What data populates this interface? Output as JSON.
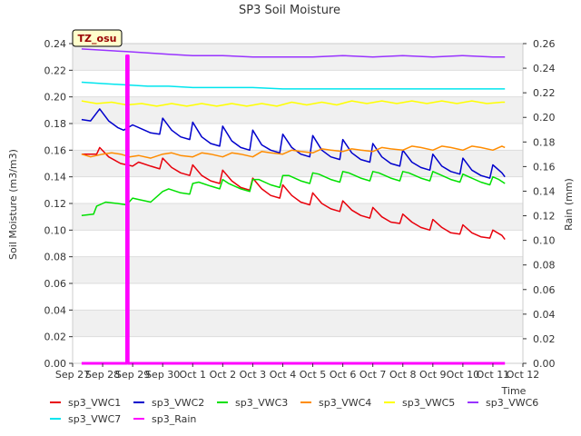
{
  "chart_data": {
    "type": "line",
    "title": "SP3 Soil Moisture",
    "xlabel": "Time",
    "ylabel": "Soil Moisture (m3/m3)",
    "y2label": "Rain (mm)",
    "badge": "TZ_osu",
    "xlim": [
      0,
      15
    ],
    "ylim": [
      0,
      0.24
    ],
    "y2lim": [
      0,
      0.26
    ],
    "x_ticks": [
      {
        "v": 0,
        "label": "Sep 27"
      },
      {
        "v": 1,
        "label": "Sep 28"
      },
      {
        "v": 2,
        "label": "Sep 29"
      },
      {
        "v": 3,
        "label": "Sep 30"
      },
      {
        "v": 4,
        "label": "Oct 1"
      },
      {
        "v": 5,
        "label": "Oct 2"
      },
      {
        "v": 6,
        "label": "Oct 3"
      },
      {
        "v": 7,
        "label": "Oct 4"
      },
      {
        "v": 8,
        "label": "Oct 5"
      },
      {
        "v": 9,
        "label": "Oct 6"
      },
      {
        "v": 10,
        "label": "Oct 7"
      },
      {
        "v": 11,
        "label": "Oct 8"
      },
      {
        "v": 12,
        "label": "Oct 9"
      },
      {
        "v": 13,
        "label": "Oct 10"
      },
      {
        "v": 14,
        "label": "Oct 11"
      },
      {
        "v": 15,
        "label": "Oct 12"
      }
    ],
    "y_ticks": [
      "0.00",
      "0.02",
      "0.04",
      "0.06",
      "0.08",
      "0.10",
      "0.12",
      "0.14",
      "0.16",
      "0.18",
      "0.20",
      "0.22",
      "0.24"
    ],
    "y2_ticks": [
      "0.00",
      "0.02",
      "0.04",
      "0.06",
      "0.08",
      "0.10",
      "0.12",
      "0.14",
      "0.16",
      "0.18",
      "0.20",
      "0.22",
      "0.24",
      "0.26"
    ],
    "grid": true,
    "legend_position": "bottom",
    "series": [
      {
        "name": "sp3_VWC1",
        "color": "#e8000b",
        "axis": "left",
        "x": [
          0.3,
          0.8,
          0.9,
          1.2,
          1.6,
          2.0,
          2.2,
          2.6,
          2.9,
          3.0,
          3.3,
          3.6,
          3.9,
          4.0,
          4.3,
          4.6,
          4.9,
          5.0,
          5.3,
          5.6,
          5.9,
          6.0,
          6.3,
          6.6,
          6.9,
          7.0,
          7.3,
          7.6,
          7.9,
          8.0,
          8.3,
          8.6,
          8.9,
          9.0,
          9.3,
          9.6,
          9.9,
          10.0,
          10.3,
          10.6,
          10.9,
          11.0,
          11.3,
          11.6,
          11.9,
          12.0,
          12.3,
          12.6,
          12.9,
          13.0,
          13.3,
          13.6,
          13.9,
          14.0,
          14.3,
          14.4
        ],
        "y": [
          0.157,
          0.157,
          0.162,
          0.155,
          0.15,
          0.148,
          0.151,
          0.148,
          0.146,
          0.154,
          0.147,
          0.143,
          0.141,
          0.149,
          0.141,
          0.137,
          0.135,
          0.145,
          0.137,
          0.132,
          0.13,
          0.139,
          0.131,
          0.126,
          0.124,
          0.134,
          0.126,
          0.121,
          0.119,
          0.128,
          0.12,
          0.116,
          0.114,
          0.122,
          0.115,
          0.111,
          0.109,
          0.117,
          0.11,
          0.106,
          0.105,
          0.112,
          0.106,
          0.102,
          0.1,
          0.108,
          0.102,
          0.098,
          0.097,
          0.104,
          0.098,
          0.095,
          0.094,
          0.1,
          0.096,
          0.093
        ]
      },
      {
        "name": "sp3_VWC2",
        "color": "#0000cc",
        "axis": "left",
        "x": [
          0.3,
          0.6,
          0.9,
          1.2,
          1.5,
          1.7,
          2.0,
          2.3,
          2.6,
          2.9,
          3.0,
          3.3,
          3.6,
          3.9,
          4.0,
          4.3,
          4.6,
          4.9,
          5.0,
          5.3,
          5.6,
          5.9,
          6.0,
          6.3,
          6.6,
          6.9,
          7.0,
          7.3,
          7.6,
          7.9,
          8.0,
          8.3,
          8.6,
          8.9,
          9.0,
          9.3,
          9.6,
          9.9,
          10.0,
          10.3,
          10.6,
          10.9,
          11.0,
          11.3,
          11.6,
          11.9,
          12.0,
          12.3,
          12.6,
          12.9,
          13.0,
          13.3,
          13.6,
          13.9,
          14.0,
          14.3,
          14.4
        ],
        "y": [
          0.183,
          0.182,
          0.191,
          0.182,
          0.177,
          0.175,
          0.179,
          0.176,
          0.173,
          0.172,
          0.184,
          0.175,
          0.17,
          0.168,
          0.181,
          0.17,
          0.165,
          0.163,
          0.178,
          0.167,
          0.162,
          0.16,
          0.175,
          0.164,
          0.16,
          0.158,
          0.172,
          0.162,
          0.157,
          0.155,
          0.171,
          0.16,
          0.155,
          0.153,
          0.168,
          0.158,
          0.153,
          0.151,
          0.165,
          0.155,
          0.15,
          0.148,
          0.16,
          0.151,
          0.147,
          0.145,
          0.157,
          0.148,
          0.144,
          0.142,
          0.154,
          0.145,
          0.141,
          0.139,
          0.149,
          0.143,
          0.14
        ]
      },
      {
        "name": "sp3_VWC3",
        "color": "#00e000",
        "axis": "left",
        "x": [
          0.3,
          0.7,
          0.8,
          1.1,
          1.5,
          1.8,
          2.0,
          2.2,
          2.6,
          3.0,
          3.2,
          3.6,
          3.9,
          4.0,
          4.2,
          4.6,
          4.9,
          5.0,
          5.2,
          5.6,
          5.9,
          6.0,
          6.2,
          6.6,
          6.9,
          7.0,
          7.2,
          7.6,
          7.9,
          8.0,
          8.2,
          8.6,
          8.9,
          9.0,
          9.2,
          9.6,
          9.9,
          10.0,
          10.2,
          10.6,
          10.9,
          11.0,
          11.2,
          11.6,
          11.9,
          12.0,
          12.2,
          12.6,
          12.9,
          13.0,
          13.2,
          13.6,
          13.9,
          14.0,
          14.2,
          14.4
        ],
        "y": [
          0.111,
          0.112,
          0.118,
          0.121,
          0.12,
          0.119,
          0.124,
          0.123,
          0.121,
          0.129,
          0.131,
          0.128,
          0.127,
          0.135,
          0.136,
          0.133,
          0.131,
          0.138,
          0.135,
          0.131,
          0.129,
          0.138,
          0.138,
          0.134,
          0.132,
          0.141,
          0.141,
          0.137,
          0.135,
          0.143,
          0.142,
          0.138,
          0.136,
          0.144,
          0.143,
          0.139,
          0.137,
          0.144,
          0.143,
          0.139,
          0.137,
          0.144,
          0.143,
          0.139,
          0.137,
          0.144,
          0.142,
          0.138,
          0.136,
          0.142,
          0.14,
          0.136,
          0.134,
          0.14,
          0.138,
          0.135
        ]
      },
      {
        "name": "sp3_VWC4",
        "color": "#ff8c00",
        "axis": "left",
        "x": [
          0.3,
          0.6,
          1.0,
          1.3,
          1.6,
          1.9,
          2.2,
          2.6,
          3.0,
          3.3,
          3.6,
          4.0,
          4.3,
          4.6,
          5.0,
          5.3,
          5.6,
          6.0,
          6.3,
          6.6,
          7.0,
          7.3,
          7.6,
          8.0,
          8.3,
          8.6,
          9.0,
          9.3,
          9.6,
          10.0,
          10.3,
          10.6,
          11.0,
          11.3,
          11.6,
          12.0,
          12.3,
          12.6,
          13.0,
          13.3,
          13.6,
          14.0,
          14.3,
          14.4
        ],
        "y": [
          0.157,
          0.155,
          0.157,
          0.158,
          0.157,
          0.155,
          0.156,
          0.154,
          0.157,
          0.158,
          0.156,
          0.155,
          0.158,
          0.157,
          0.155,
          0.158,
          0.157,
          0.155,
          0.159,
          0.158,
          0.157,
          0.16,
          0.159,
          0.158,
          0.161,
          0.16,
          0.159,
          0.161,
          0.16,
          0.159,
          0.162,
          0.161,
          0.16,
          0.163,
          0.162,
          0.16,
          0.163,
          0.162,
          0.16,
          0.163,
          0.162,
          0.16,
          0.163,
          0.162
        ]
      },
      {
        "name": "sp3_VWC5",
        "color": "#ffff00",
        "axis": "left",
        "x": [
          0.3,
          0.8,
          1.3,
          1.8,
          2.3,
          2.8,
          3.3,
          3.8,
          4.3,
          4.8,
          5.3,
          5.8,
          6.3,
          6.8,
          7.3,
          7.8,
          8.3,
          8.8,
          9.3,
          9.8,
          10.3,
          10.8,
          11.3,
          11.8,
          12.3,
          12.8,
          13.3,
          13.8,
          14.3,
          14.4
        ],
        "y": [
          0.197,
          0.195,
          0.196,
          0.194,
          0.195,
          0.193,
          0.195,
          0.193,
          0.195,
          0.193,
          0.195,
          0.193,
          0.195,
          0.193,
          0.196,
          0.194,
          0.196,
          0.194,
          0.197,
          0.195,
          0.197,
          0.195,
          0.197,
          0.195,
          0.197,
          0.195,
          0.197,
          0.195,
          0.196,
          0.196
        ]
      },
      {
        "name": "sp3_VWC6",
        "color": "#9933ff",
        "axis": "left",
        "x": [
          0.3,
          1.0,
          1.8,
          2.5,
          3.2,
          4.0,
          5.0,
          6.0,
          7.0,
          8.0,
          9.0,
          10.0,
          11.0,
          12.0,
          13.0,
          14.0,
          14.4
        ],
        "y": [
          0.236,
          0.235,
          0.234,
          0.233,
          0.232,
          0.231,
          0.231,
          0.23,
          0.23,
          0.23,
          0.231,
          0.23,
          0.231,
          0.23,
          0.231,
          0.23,
          0.23
        ]
      },
      {
        "name": "sp3_VWC7",
        "color": "#00e5ee",
        "axis": "left",
        "x": [
          0.3,
          1.0,
          1.8,
          2.5,
          3.2,
          4.0,
          5.0,
          6.0,
          7.0,
          8.0,
          9.0,
          10.0,
          11.0,
          12.0,
          13.0,
          14.0,
          14.4
        ],
        "y": [
          0.211,
          0.21,
          0.209,
          0.208,
          0.208,
          0.207,
          0.207,
          0.207,
          0.206,
          0.206,
          0.206,
          0.206,
          0.206,
          0.206,
          0.206,
          0.206,
          0.206
        ]
      },
      {
        "name": "sp3_Rain",
        "color": "#ff00ff",
        "axis": "right",
        "x": [
          0.3,
          1.8,
          1.8,
          1.85,
          1.85,
          14.4
        ],
        "y": [
          0.0,
          0.0,
          0.25,
          0.25,
          0.0,
          0.0
        ]
      }
    ]
  }
}
